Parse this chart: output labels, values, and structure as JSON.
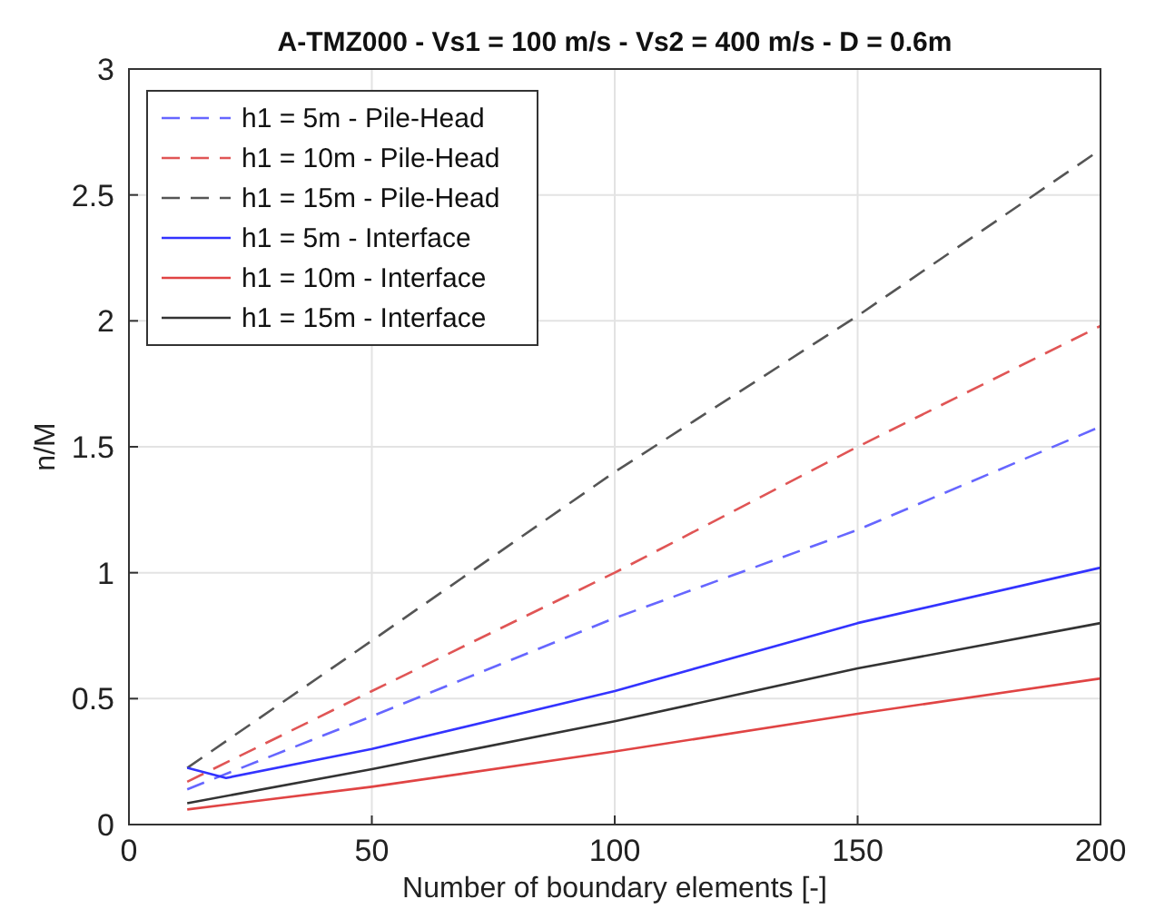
{
  "chart_data": {
    "type": "line",
    "title": "A-TMZ000 - Vs1 = 100 m/s - Vs2 = 400 m/s - D = 0.6m",
    "xlabel": "Number of boundary elements [-]",
    "ylabel": "n/M",
    "xlim": [
      0,
      200
    ],
    "xticks": [
      0,
      50,
      100,
      150,
      200
    ],
    "ylim": [
      0,
      3
    ],
    "yticks": [
      0,
      0.5,
      1,
      1.5,
      2,
      2.5,
      3
    ],
    "grid": true,
    "legend": "top left",
    "x": [
      12,
      50,
      100,
      150,
      200
    ],
    "series": [
      {
        "name": "h1 = 5m - Pile-Head",
        "color": "#6666ff",
        "line_style": "dashed",
        "values": [
          0.14,
          0.43,
          0.82,
          1.17,
          1.58
        ]
      },
      {
        "name": "h1 = 10m - Pile-Head",
        "color": "#e05555",
        "line_style": "dashed",
        "values": [
          0.17,
          0.53,
          1.0,
          1.5,
          1.98
        ]
      },
      {
        "name": "h1 = 15m - Pile-Head",
        "color": "#555555",
        "line_style": "dashed",
        "values": [
          0.225,
          0.73,
          1.4,
          2.02,
          2.68
        ]
      },
      {
        "name": "h1 = 5m - Interface",
        "color": "#3333ff",
        "line_style": "solid",
        "x": [
          12,
          20,
          50,
          100,
          150,
          200
        ],
        "values": [
          0.225,
          0.185,
          0.3,
          0.53,
          0.8,
          1.02
        ]
      },
      {
        "name": "h1 = 10m - Interface",
        "color": "#e04444",
        "line_style": "solid",
        "values": [
          0.06,
          0.15,
          0.29,
          0.44,
          0.58
        ]
      },
      {
        "name": "h1 = 15m - Interface",
        "color": "#333333",
        "line_style": "solid",
        "values": [
          0.085,
          0.22,
          0.41,
          0.62,
          0.8
        ]
      }
    ]
  }
}
